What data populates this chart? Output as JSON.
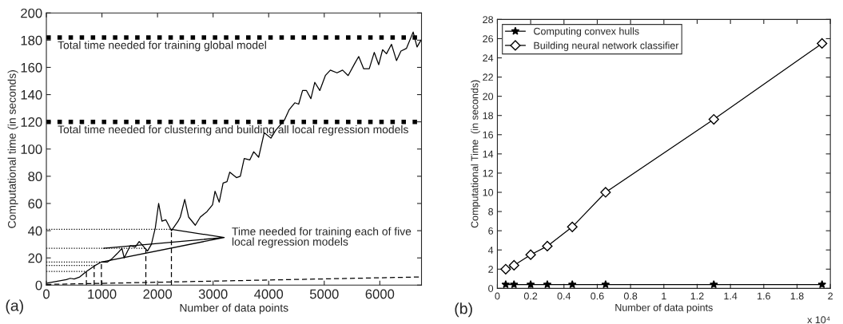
{
  "chart_data": [
    {
      "type": "line",
      "xlabel": "Number of data points",
      "ylabel": "Computational time (in seconds)",
      "xlim": [
        0,
        6750
      ],
      "ylim": [
        0,
        200
      ],
      "xticks": [
        0,
        1000,
        2000,
        3000,
        4000,
        5000,
        6000
      ],
      "yticks": [
        0,
        20,
        40,
        60,
        80,
        100,
        120,
        140,
        160,
        180,
        200
      ],
      "grid": false,
      "legend": false,
      "series": [
        {
          "color": "#000000",
          "line_style": "solid",
          "marker": "none",
          "x": [
            0,
            360,
            430,
            500,
            600,
            720,
            860,
            990,
            1100,
            1170,
            1270,
            1360,
            1400,
            1510,
            1600,
            1670,
            1820,
            1890,
            1960,
            2020,
            2080,
            2150,
            2250,
            2370,
            2410,
            2490,
            2560,
            2680,
            2770,
            2890,
            2990,
            3035,
            3110,
            3180,
            3250,
            3300,
            3420,
            3490,
            3560,
            3660,
            3730,
            3820,
            3920,
            4040,
            4130,
            4280,
            4370,
            4470,
            4540,
            4610,
            4680,
            4760,
            4830,
            4920,
            5020,
            5110,
            5230,
            5330,
            5430,
            5550,
            5620,
            5710,
            5810,
            5900,
            5980,
            6050,
            6120,
            6210,
            6300,
            6380,
            6480,
            6600,
            6670,
            6740
          ],
          "values": [
            1.4,
            4,
            5,
            4.5,
            6,
            10,
            14,
            17,
            17,
            19,
            23,
            27,
            20,
            29,
            28,
            32,
            25,
            30,
            42,
            60,
            47,
            48,
            40,
            47,
            50,
            63,
            50,
            44,
            50,
            54,
            59,
            69,
            61,
            75,
            76,
            83,
            79,
            80,
            93,
            92,
            98,
            94,
            112,
            108,
            114,
            121,
            129,
            134,
            133,
            143,
            143,
            137,
            149,
            143,
            154,
            158,
            156,
            158,
            154,
            163,
            168,
            159,
            159,
            171,
            162,
            173,
            170,
            177,
            165,
            172,
            174,
            186,
            175,
            180
          ]
        },
        {
          "color": "#000000",
          "line_style": "dashed",
          "marker": "none",
          "x": [
            0,
            6740
          ],
          "values": [
            0.5,
            6
          ]
        },
        {
          "color": "#000000",
          "line_style": "dotted",
          "marker": "none",
          "x": [
            0,
            2250,
            null,
            0,
            1790,
            null,
            0,
            990,
            null,
            0,
            860,
            null,
            0,
            720
          ],
          "values": [
            41,
            41,
            null,
            27,
            27,
            null,
            17,
            17,
            null,
            14.5,
            14.5,
            null,
            10,
            10
          ]
        },
        {
          "color": "#000000",
          "line_style": "dashed",
          "marker": "none",
          "x": [
            2250,
            2250,
            null,
            1790,
            1790,
            null,
            990,
            990,
            null,
            860,
            860,
            null,
            720,
            720
          ],
          "values": [
            0,
            41,
            null,
            0,
            27,
            null,
            0,
            17,
            null,
            0,
            14.5,
            null,
            0,
            10
          ]
        },
        {
          "color": "#000000",
          "line_style": "solid",
          "marker": "none",
          "x": [
            2250,
            3200,
            null,
            1030,
            3200,
            null,
            990,
            3200
          ],
          "values": [
            41,
            35,
            null,
            27,
            35,
            null,
            17,
            35
          ]
        }
      ],
      "ref_lines": [
        {
          "axis": "y",
          "value": 182,
          "label": "Total time needed for training global model",
          "line_style": "dotted",
          "color": "#000000"
        },
        {
          "axis": "y",
          "value": 120,
          "label": "Total time needed for clustering and building all local regression models",
          "line_style": "dotted",
          "color": "#000000"
        }
      ],
      "annotations": [
        {
          "text": "Time needed for training each of five\nlocal regression models",
          "x": 3200,
          "y": 35
        },
        "(a)"
      ]
    },
    {
      "type": "line",
      "xlabel": "Number of data points",
      "ylabel": "Computational Time  (in seconds)",
      "xlim": [
        0,
        2
      ],
      "ylim": [
        0,
        28
      ],
      "xticks": [
        0,
        0.2,
        0.4,
        0.6,
        0.8,
        1,
        1.2,
        1.4,
        1.6,
        1.8,
        2
      ],
      "yticks": [
        0,
        2,
        4,
        6,
        8,
        10,
        12,
        14,
        16,
        18,
        20,
        22,
        24,
        26,
        28
      ],
      "grid": false,
      "legend": "top left",
      "series": [
        {
          "name": "Computing convex hulls",
          "color": "#000000",
          "line_style": "solid",
          "marker": "star",
          "x": [
            0.05,
            0.1,
            0.2,
            0.3,
            0.45,
            0.65,
            1.3,
            1.95
          ],
          "values": [
            0.4,
            0.4,
            0.4,
            0.4,
            0.4,
            0.4,
            0.4,
            0.4
          ]
        },
        {
          "name": "Building neural network classifier",
          "color": "#000000",
          "line_style": "solid",
          "marker": "diamond",
          "x": [
            0.05,
            0.1,
            0.2,
            0.3,
            0.45,
            0.65,
            1.3,
            1.95
          ],
          "values": [
            2,
            2.4,
            3.5,
            4.4,
            6.4,
            10,
            17.6,
            25.5
          ]
        }
      ],
      "annotations": [
        "x 10⁴",
        "(b)"
      ]
    }
  ]
}
